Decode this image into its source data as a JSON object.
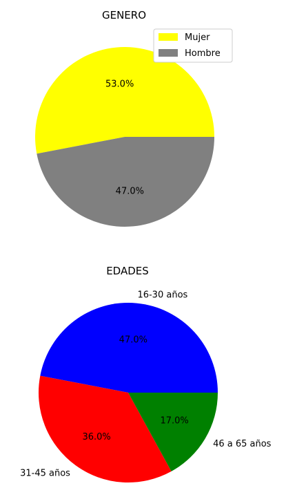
{
  "chart_data": [
    {
      "type": "pie",
      "title": "GENERO",
      "labels": [
        "Mujer",
        "Hombre"
      ],
      "values": [
        53.0,
        47.0
      ],
      "colors": [
        "#ffff00",
        "#808080"
      ],
      "legend": "top-right",
      "show_slice_labels": false,
      "autopct": "%.1f%%"
    },
    {
      "type": "pie",
      "title": "EDADES",
      "labels": [
        "16-30 años",
        "31-45 años",
        "46 a 65 años"
      ],
      "values": [
        47.0,
        36.0,
        17.0
      ],
      "colors": [
        "#0000ff",
        "#ff0000",
        "#008000"
      ],
      "legend": "none",
      "show_slice_labels": true,
      "autopct": "%.1f%%"
    }
  ]
}
